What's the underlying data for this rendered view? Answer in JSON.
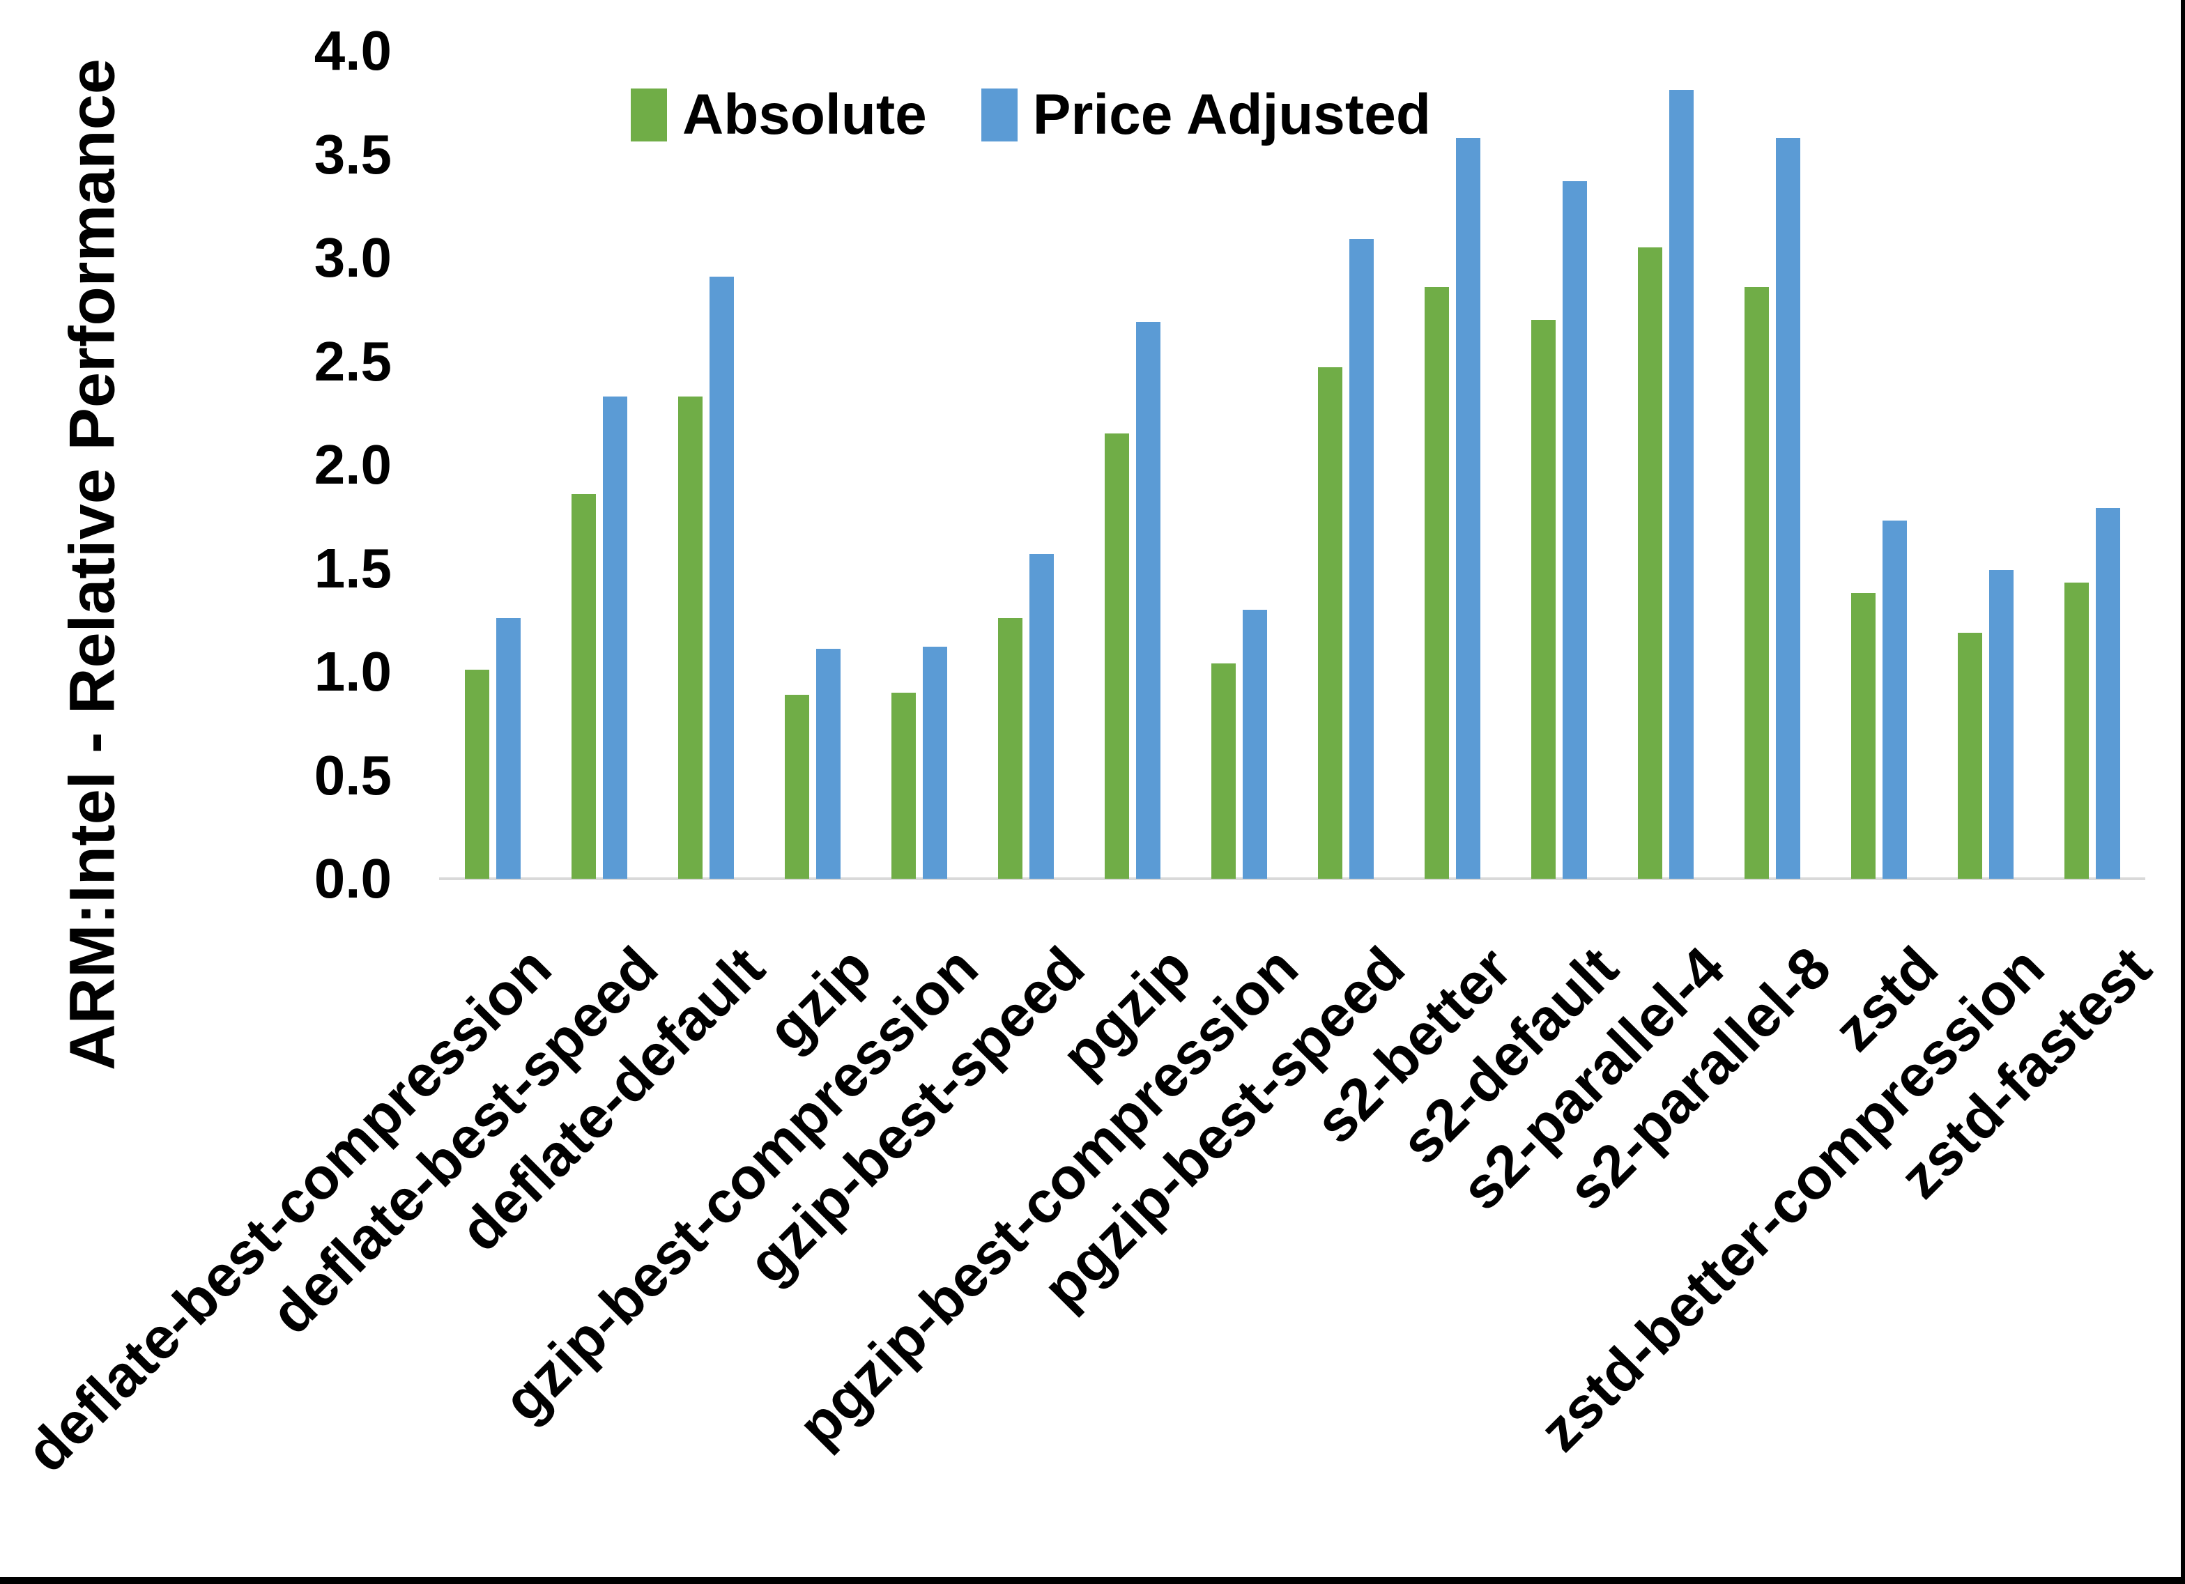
{
  "frame": {
    "background": "#FFFFFF",
    "right_border_color": "#000000",
    "bottom_border_color": "#000000"
  },
  "chart_data": {
    "type": "bar",
    "title": "",
    "xlabel": "",
    "ylabel": "ARM:Intel - Relative Performance",
    "ylim": [
      0,
      4
    ],
    "ytick_step": 0.5,
    "yticks": [
      "0.0",
      "0.5",
      "1.0",
      "1.5",
      "2.0",
      "2.5",
      "3.0",
      "3.5",
      "4.0"
    ],
    "grid": false,
    "legend_position": "top-center",
    "axis_line_color": "#D9D9D9",
    "categories": [
      "deflate-best-compression",
      "deflate-best-speed",
      "deflate-default",
      "gzip",
      "gzip-best-compression",
      "gzip-best-speed",
      "pgzip",
      "pgzip-best-compression",
      "pgzip-best-speed",
      "s2-better",
      "s2-default",
      "s2-parallel-4",
      "s2-parallel-8",
      "zstd",
      "zstd-better-compression",
      "zstd-fastest"
    ],
    "series": [
      {
        "name": "Absolute",
        "color": "#70AD47",
        "values": [
          1.01,
          1.86,
          2.33,
          0.89,
          0.9,
          1.26,
          2.15,
          1.04,
          2.47,
          2.86,
          2.7,
          3.05,
          2.86,
          1.38,
          1.19,
          1.43
        ]
      },
      {
        "name": "Price Adjusted",
        "color": "#5B9BD5",
        "values": [
          1.26,
          2.33,
          2.91,
          1.11,
          1.12,
          1.57,
          2.69,
          1.3,
          3.09,
          3.58,
          3.37,
          3.81,
          3.58,
          1.73,
          1.49,
          1.79
        ]
      }
    ]
  }
}
